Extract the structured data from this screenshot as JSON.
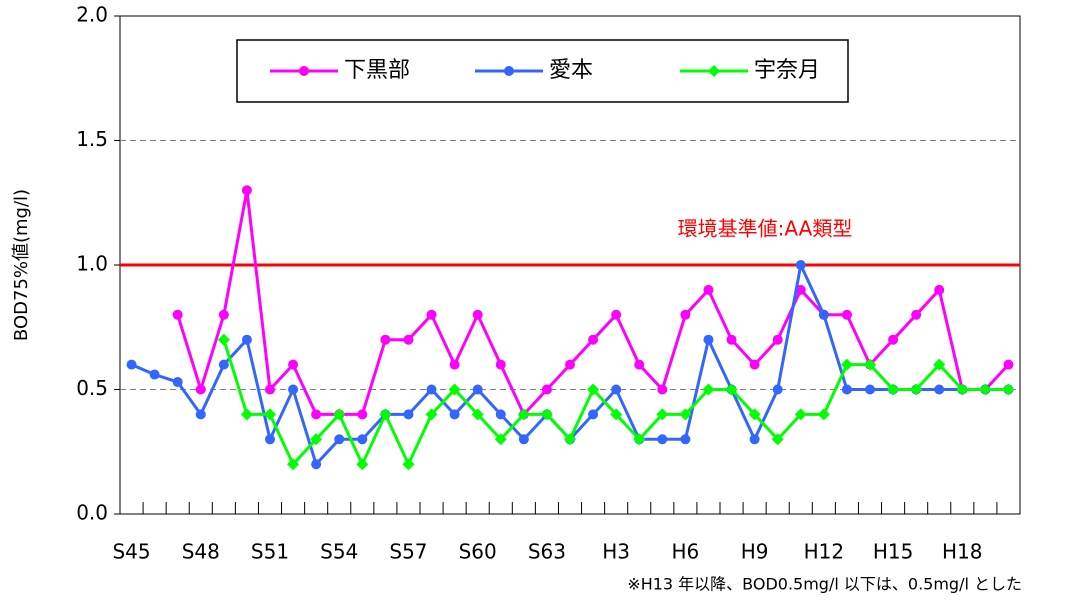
{
  "chart_data": {
    "type": "line",
    "ylabel": "BOD75%値(mg/l)",
    "note": "※H13 年以降、BOD0.5mg/l 以下は、0.5mg/l とした",
    "categories": [
      "S45",
      null,
      null,
      "S48",
      null,
      null,
      "S51",
      null,
      null,
      "S54",
      null,
      null,
      "S57",
      null,
      null,
      "S60",
      null,
      null,
      "S63",
      null,
      null,
      "H3",
      null,
      null,
      "H6",
      null,
      null,
      "H9",
      null,
      null,
      "H12",
      null,
      null,
      "H15",
      null,
      null,
      "H18",
      null,
      null
    ],
    "series": [
      {
        "name": "下黒部",
        "color": "#ff00ff",
        "marker": "circle",
        "values": [
          null,
          null,
          0.8,
          0.5,
          0.8,
          1.3,
          0.5,
          0.6,
          0.4,
          0.4,
          0.4,
          0.7,
          0.7,
          0.8,
          0.6,
          0.8,
          0.6,
          0.4,
          0.5,
          0.6,
          0.7,
          0.8,
          0.6,
          0.5,
          0.8,
          0.9,
          0.7,
          0.6,
          0.7,
          0.9,
          0.8,
          0.8,
          0.6,
          0.7,
          0.8,
          0.9,
          0.5,
          0.5,
          0.6
        ]
      },
      {
        "name": "愛本",
        "color": "#3366ff",
        "marker": "circle",
        "values": [
          0.6,
          0.56,
          0.53,
          0.4,
          0.6,
          0.7,
          0.3,
          0.5,
          0.2,
          0.3,
          0.3,
          0.4,
          0.4,
          0.5,
          0.4,
          0.5,
          0.4,
          0.3,
          0.4,
          0.3,
          0.4,
          0.5,
          0.3,
          0.3,
          0.3,
          0.7,
          0.5,
          0.3,
          0.5,
          1.0,
          0.8,
          0.5,
          0.5,
          0.5,
          0.5,
          0.5,
          0.5,
          0.5,
          0.5
        ]
      },
      {
        "name": "宇奈月",
        "color": "#00ff00",
        "marker": "diamond",
        "values": [
          null,
          null,
          null,
          null,
          0.7,
          0.4,
          0.4,
          0.2,
          0.3,
          0.4,
          0.2,
          0.4,
          0.2,
          0.4,
          0.5,
          0.4,
          0.3,
          0.4,
          0.4,
          0.3,
          0.5,
          0.4,
          0.3,
          0.4,
          0.4,
          0.5,
          0.5,
          0.4,
          0.3,
          0.4,
          0.4,
          0.6,
          0.6,
          0.5,
          0.5,
          0.6,
          0.5,
          0.5,
          0.5
        ]
      }
    ],
    "reference_line": {
      "value": 1.0,
      "label": "環境基準値:AA類型",
      "color": "#ff0000"
    },
    "ylim": [
      0,
      2
    ],
    "yticks": [
      {
        "value": 0,
        "label": "0.0"
      },
      {
        "value": 0.5,
        "label": "0.5"
      },
      {
        "value": 1,
        "label": "1.0"
      },
      {
        "value": 1.5,
        "label": "1.5"
      },
      {
        "value": 2,
        "label": "2.0"
      }
    ],
    "grid": true
  }
}
